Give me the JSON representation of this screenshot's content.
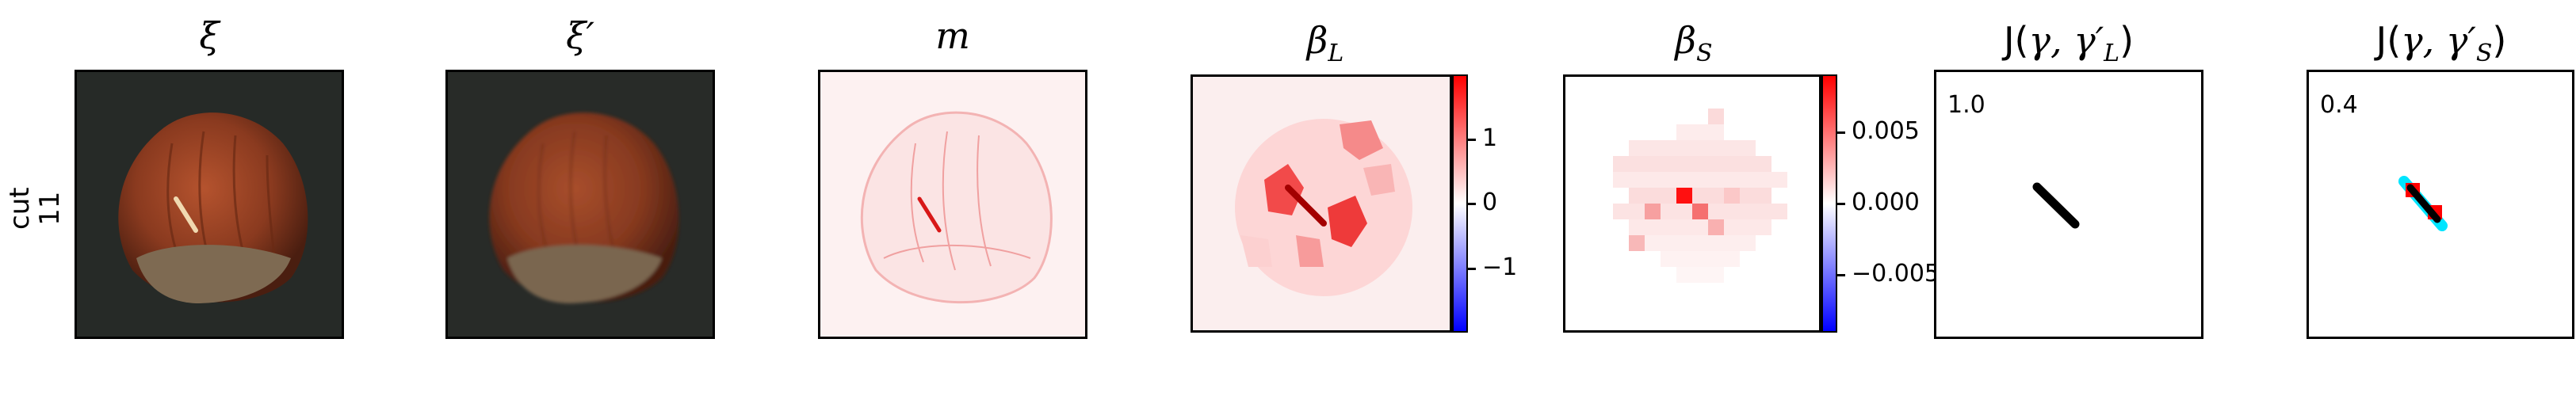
{
  "row": {
    "line1": "cut",
    "line2": "11"
  },
  "panels": {
    "xi": {
      "title": "ξ"
    },
    "xi_prime": {
      "title": "ξ′"
    },
    "m": {
      "title": "m"
    },
    "beta_l": {
      "title": "β",
      "sub": "L",
      "ticks": [
        "1",
        "0",
        "−1"
      ]
    },
    "beta_s": {
      "title": "β",
      "sub": "S",
      "ticks": [
        "0.005",
        "0.000",
        "−0.005"
      ]
    },
    "j_l": {
      "title_pre": "J(",
      "title_gamma": "γ, γ′",
      "title_sub": "L",
      "title_post": ")",
      "score": "1.0"
    },
    "j_s": {
      "title_pre": "J(",
      "title_gamma": "γ, γ′",
      "title_sub": "S",
      "title_post": ")",
      "score": "0.4"
    }
  },
  "colors": {
    "background_photo": "#272a28",
    "hazelnut": "#8a3a20",
    "cap": "#6b5a45",
    "overlay_red": "#ff0000",
    "overlay_cyan": "#00e5ff"
  }
}
